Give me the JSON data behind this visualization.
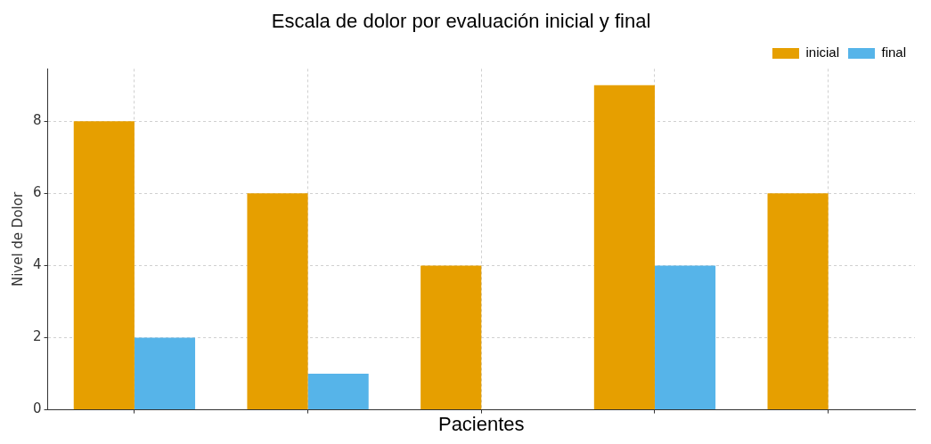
{
  "chart_data": {
    "type": "bar",
    "title": "Escala de dolor por evaluación inicial y final",
    "xlabel": "Pacientes",
    "ylabel": "Nivel de Dolor",
    "categories": [
      null,
      null,
      null,
      null,
      null
    ],
    "series": [
      {
        "name": "inicial",
        "color": "#e69f00",
        "values": [
          8,
          6,
          4,
          9,
          6
        ]
      },
      {
        "name": "final",
        "color": "#56b4e9",
        "values": [
          2,
          1,
          0,
          4,
          0
        ]
      }
    ],
    "ylim": [
      0,
      9.45
    ],
    "yticks": [
      0,
      2,
      4,
      6,
      8
    ],
    "grid": true,
    "legend": "top right",
    "tick_labels": "y"
  }
}
